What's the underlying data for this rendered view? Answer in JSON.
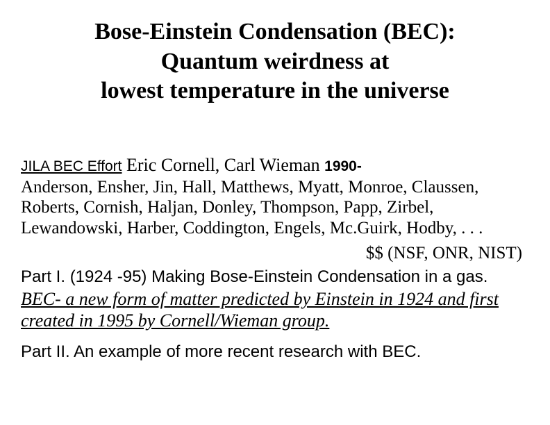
{
  "title": {
    "line1": "Bose-Einstein Condensation (BEC):",
    "line2": "Quantum weirdness at",
    "line3": "lowest temperature in the universe"
  },
  "credits": {
    "effort_label": "JILA BEC Effort",
    "pis": "   Eric Cornell, Carl Wieman   ",
    "year": "1990-",
    "contributors": "Anderson, Ensher, Jin, Hall, Matthews, Myatt, Monroe, Claussen, Roberts, Cornish, Haljan, Donley, Thompson, Papp, Zirbel, Lewandowski, Harber, Coddington, Engels, Mc.Guirk, Hodby, . . .",
    "funding": "$$ (NSF, ONR, NIST)"
  },
  "parts": {
    "part1_head": "Part I. (1924 -95) Making Bose-Einstein Condensation in a gas.",
    "part1_desc": " BEC- a new form of matter predicted by Einstein in 1924 and first created in 1995 by Cornell/Wieman group.",
    "part2_head": "Part II.  An example of more recent research with BEC."
  }
}
